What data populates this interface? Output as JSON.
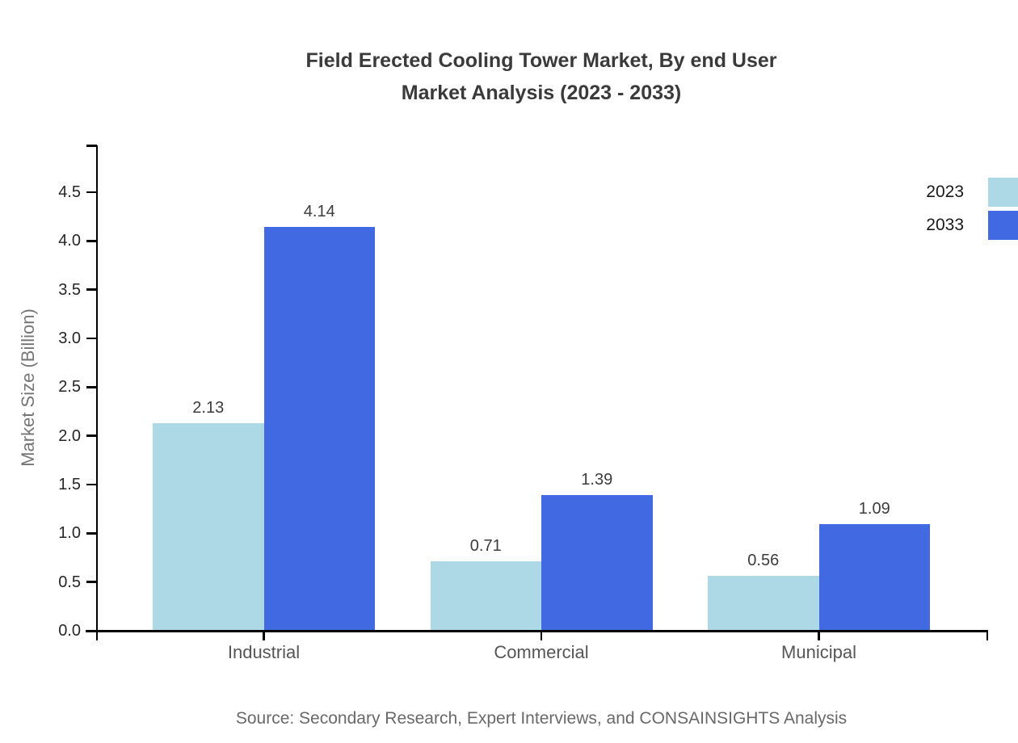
{
  "title": {
    "line1": "Field Erected Cooling Tower Market, By end User",
    "line2": "Market Analysis (2023 - 2033)"
  },
  "source": "Source: Secondary Research, Expert Interviews, and CONSAINSIGHTS Analysis",
  "chart_data": {
    "type": "bar",
    "title": "Field Erected Cooling Tower Market, By end User Market Analysis (2023 - 2033)",
    "categories": [
      "Industrial",
      "Commercial",
      "Municipal"
    ],
    "series": [
      {
        "name": "2023",
        "color": "#ADD8E6",
        "values": [
          2.13,
          0.71,
          0.56
        ]
      },
      {
        "name": "2033",
        "color": "#4169E1",
        "values": [
          4.14,
          1.39,
          1.09
        ]
      }
    ],
    "bar_labels": [
      [
        "2.13",
        "0.71",
        "0.56"
      ],
      [
        "4.14",
        "1.39",
        "1.09"
      ]
    ],
    "xlabel": "",
    "ylabel": "Market Size (Billion)",
    "ylim": [
      0,
      5
    ],
    "yticks": [
      0.0,
      0.5,
      1.0,
      1.5,
      2.0,
      2.5,
      3.0,
      3.5,
      4.0,
      4.5
    ],
    "ytick_labels": [
      "0.0",
      "0.5",
      "1.0",
      "1.5",
      "2.0",
      "2.5",
      "3.0",
      "3.5",
      "4.0",
      "4.5"
    ],
    "grid": false,
    "legend_position": "upper right",
    "axis_color": "#000000"
  }
}
